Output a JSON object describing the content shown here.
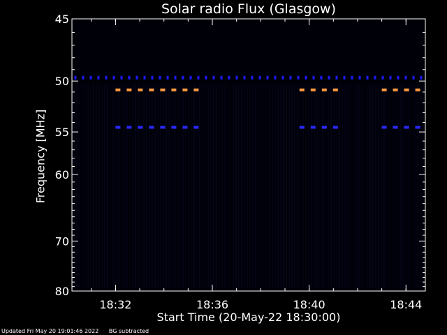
{
  "chart_data": {
    "type": "heatmap",
    "title": "Solar radio Flux (Glasgow)",
    "xlabel": "Start Time (20-May-22 18:30:00)",
    "ylabel": "Frequency [MHz]",
    "x_unit": "minutes after 18:30",
    "x_range": [
      0.2,
      14.8
    ],
    "x_ticks": [
      {
        "value": 2,
        "label": "18:32"
      },
      {
        "value": 6,
        "label": "18:36"
      },
      {
        "value": 10,
        "label": "18:40"
      },
      {
        "value": 14,
        "label": "18:44"
      }
    ],
    "y_scale": "reciprocal",
    "y_range": [
      45,
      80
    ],
    "y_ticks": [
      45,
      50,
      55,
      60,
      70,
      80
    ],
    "features": [
      {
        "freq_mhz": 49.7,
        "start": 0.3,
        "end": 14.8,
        "color": "#1a1aff",
        "style": "continuous dashed band"
      },
      {
        "freq_mhz": 50.8,
        "start": 2.0,
        "end": 5.5,
        "color": "#ff9a40",
        "style": "dashed band"
      },
      {
        "freq_mhz": 50.8,
        "start": 9.6,
        "end": 11.6,
        "color": "#ff9a40",
        "style": "dashed band"
      },
      {
        "freq_mhz": 50.8,
        "start": 13.0,
        "end": 14.8,
        "color": "#ff9a40",
        "style": "dashed band"
      },
      {
        "freq_mhz": 54.5,
        "start": 2.0,
        "end": 5.5,
        "color": "#2a2aff",
        "style": "dashed band"
      },
      {
        "freq_mhz": 54.5,
        "start": 9.6,
        "end": 11.6,
        "color": "#2a2aff",
        "style": "dashed band"
      },
      {
        "freq_mhz": 54.5,
        "start": 13.0,
        "end": 14.8,
        "color": "#2a2aff",
        "style": "dashed band"
      }
    ],
    "background_color": "#000008",
    "grid": false
  },
  "labels": {
    "updated": "Updated Fri May 20 19:01:46 2022",
    "bg_note": "BG subtracted"
  }
}
